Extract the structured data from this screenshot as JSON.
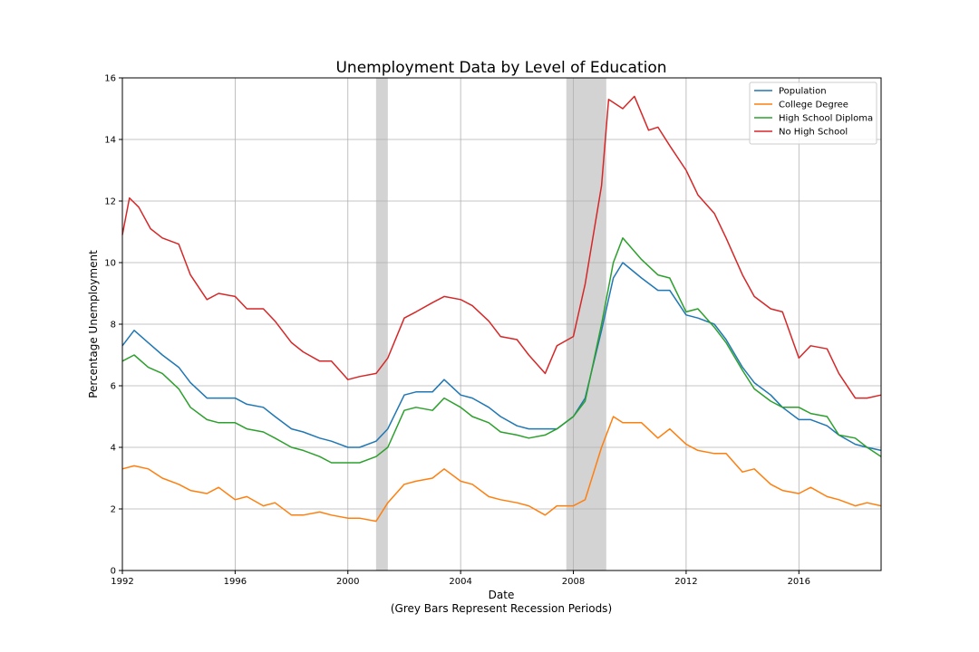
{
  "chart_data": {
    "type": "line",
    "title": "Unemployment Data by Level of Education",
    "xlabel": "Date",
    "xlabel_note": "(Grey Bars Represent Recession Periods)",
    "ylabel": "Percentage Unemployment",
    "xlim": [
      "1992-01",
      "2018-12"
    ],
    "ylim": [
      0,
      16
    ],
    "x_ticks": [
      "1992",
      "1996",
      "2000",
      "2004",
      "2008",
      "2012",
      "2016"
    ],
    "y_ticks": [
      "0",
      "2",
      "4",
      "6",
      "8",
      "10",
      "12",
      "14",
      "16"
    ],
    "grid": true,
    "legend_position": "top-right",
    "recessions": [
      {
        "start": "2001-01",
        "end": "2001-06"
      },
      {
        "start": "2007-10",
        "end": "2009-03"
      }
    ],
    "series": [
      {
        "name": "Population",
        "color": "#1f77b4",
        "points": [
          [
            "1992-01",
            7.3
          ],
          [
            "1992-06",
            7.8
          ],
          [
            "1992-12",
            7.4
          ],
          [
            "1993-06",
            7.0
          ],
          [
            "1994-01",
            6.6
          ],
          [
            "1994-06",
            6.1
          ],
          [
            "1995-01",
            5.6
          ],
          [
            "1995-06",
            5.6
          ],
          [
            "1996-01",
            5.6
          ],
          [
            "1996-06",
            5.4
          ],
          [
            "1997-01",
            5.3
          ],
          [
            "1997-06",
            5.0
          ],
          [
            "1998-01",
            4.6
          ],
          [
            "1998-06",
            4.5
          ],
          [
            "1999-01",
            4.3
          ],
          [
            "1999-06",
            4.2
          ],
          [
            "2000-01",
            4.0
          ],
          [
            "2000-06",
            4.0
          ],
          [
            "2001-01",
            4.2
          ],
          [
            "2001-06",
            4.6
          ],
          [
            "2002-01",
            5.7
          ],
          [
            "2002-06",
            5.8
          ],
          [
            "2003-01",
            5.8
          ],
          [
            "2003-06",
            6.2
          ],
          [
            "2004-01",
            5.7
          ],
          [
            "2004-06",
            5.6
          ],
          [
            "2005-01",
            5.3
          ],
          [
            "2005-06",
            5.0
          ],
          [
            "2006-01",
            4.7
          ],
          [
            "2006-06",
            4.6
          ],
          [
            "2007-01",
            4.6
          ],
          [
            "2007-06",
            4.6
          ],
          [
            "2008-01",
            5.0
          ],
          [
            "2008-06",
            5.6
          ],
          [
            "2009-01",
            7.8
          ],
          [
            "2009-06",
            9.5
          ],
          [
            "2009-10",
            10.0
          ],
          [
            "2010-06",
            9.5
          ],
          [
            "2011-01",
            9.1
          ],
          [
            "2011-06",
            9.1
          ],
          [
            "2012-01",
            8.3
          ],
          [
            "2012-06",
            8.2
          ],
          [
            "2013-01",
            8.0
          ],
          [
            "2013-06",
            7.5
          ],
          [
            "2014-01",
            6.6
          ],
          [
            "2014-06",
            6.1
          ],
          [
            "2015-01",
            5.7
          ],
          [
            "2015-06",
            5.3
          ],
          [
            "2016-01",
            4.9
          ],
          [
            "2016-06",
            4.9
          ],
          [
            "2017-01",
            4.7
          ],
          [
            "2017-06",
            4.4
          ],
          [
            "2018-01",
            4.1
          ],
          [
            "2018-06",
            4.0
          ],
          [
            "2018-12",
            3.9
          ]
        ]
      },
      {
        "name": "College Degree",
        "color": "#ff7f0e",
        "points": [
          [
            "1992-01",
            3.3
          ],
          [
            "1992-06",
            3.4
          ],
          [
            "1992-12",
            3.3
          ],
          [
            "1993-06",
            3.0
          ],
          [
            "1994-01",
            2.8
          ],
          [
            "1994-06",
            2.6
          ],
          [
            "1995-01",
            2.5
          ],
          [
            "1995-06",
            2.7
          ],
          [
            "1996-01",
            2.3
          ],
          [
            "1996-06",
            2.4
          ],
          [
            "1997-01",
            2.1
          ],
          [
            "1997-06",
            2.2
          ],
          [
            "1998-01",
            1.8
          ],
          [
            "1998-06",
            1.8
          ],
          [
            "1999-01",
            1.9
          ],
          [
            "1999-06",
            1.8
          ],
          [
            "2000-01",
            1.7
          ],
          [
            "2000-06",
            1.7
          ],
          [
            "2001-01",
            1.6
          ],
          [
            "2001-06",
            2.2
          ],
          [
            "2002-01",
            2.8
          ],
          [
            "2002-06",
            2.9
          ],
          [
            "2003-01",
            3.0
          ],
          [
            "2003-06",
            3.3
          ],
          [
            "2004-01",
            2.9
          ],
          [
            "2004-06",
            2.8
          ],
          [
            "2005-01",
            2.4
          ],
          [
            "2005-06",
            2.3
          ],
          [
            "2006-01",
            2.2
          ],
          [
            "2006-06",
            2.1
          ],
          [
            "2007-01",
            1.8
          ],
          [
            "2007-06",
            2.1
          ],
          [
            "2008-01",
            2.1
          ],
          [
            "2008-06",
            2.3
          ],
          [
            "2009-01",
            4.0
          ],
          [
            "2009-06",
            5.0
          ],
          [
            "2009-10",
            4.8
          ],
          [
            "2010-06",
            4.8
          ],
          [
            "2011-01",
            4.3
          ],
          [
            "2011-06",
            4.6
          ],
          [
            "2012-01",
            4.1
          ],
          [
            "2012-06",
            3.9
          ],
          [
            "2013-01",
            3.8
          ],
          [
            "2013-06",
            3.8
          ],
          [
            "2014-01",
            3.2
          ],
          [
            "2014-06",
            3.3
          ],
          [
            "2015-01",
            2.8
          ],
          [
            "2015-06",
            2.6
          ],
          [
            "2016-01",
            2.5
          ],
          [
            "2016-06",
            2.7
          ],
          [
            "2017-01",
            2.4
          ],
          [
            "2017-06",
            2.3
          ],
          [
            "2018-01",
            2.1
          ],
          [
            "2018-06",
            2.2
          ],
          [
            "2018-12",
            2.1
          ]
        ]
      },
      {
        "name": "High School Diploma",
        "color": "#2ca02c",
        "points": [
          [
            "1992-01",
            6.8
          ],
          [
            "1992-06",
            7.0
          ],
          [
            "1992-12",
            6.6
          ],
          [
            "1993-06",
            6.4
          ],
          [
            "1994-01",
            5.9
          ],
          [
            "1994-06",
            5.3
          ],
          [
            "1995-01",
            4.9
          ],
          [
            "1995-06",
            4.8
          ],
          [
            "1996-01",
            4.8
          ],
          [
            "1996-06",
            4.6
          ],
          [
            "1997-01",
            4.5
          ],
          [
            "1997-06",
            4.3
          ],
          [
            "1998-01",
            4.0
          ],
          [
            "1998-06",
            3.9
          ],
          [
            "1999-01",
            3.7
          ],
          [
            "1999-06",
            3.5
          ],
          [
            "2000-01",
            3.5
          ],
          [
            "2000-06",
            3.5
          ],
          [
            "2001-01",
            3.7
          ],
          [
            "2001-06",
            4.0
          ],
          [
            "2002-01",
            5.2
          ],
          [
            "2002-06",
            5.3
          ],
          [
            "2003-01",
            5.2
          ],
          [
            "2003-06",
            5.6
          ],
          [
            "2004-01",
            5.3
          ],
          [
            "2004-06",
            5.0
          ],
          [
            "2005-01",
            4.8
          ],
          [
            "2005-06",
            4.5
          ],
          [
            "2006-01",
            4.4
          ],
          [
            "2006-06",
            4.3
          ],
          [
            "2007-01",
            4.4
          ],
          [
            "2007-06",
            4.6
          ],
          [
            "2008-01",
            5.0
          ],
          [
            "2008-06",
            5.5
          ],
          [
            "2009-01",
            8.0
          ],
          [
            "2009-06",
            10.0
          ],
          [
            "2009-10",
            10.8
          ],
          [
            "2010-06",
            10.1
          ],
          [
            "2011-01",
            9.6
          ],
          [
            "2011-06",
            9.5
          ],
          [
            "2012-01",
            8.4
          ],
          [
            "2012-06",
            8.5
          ],
          [
            "2013-01",
            7.9
          ],
          [
            "2013-06",
            7.4
          ],
          [
            "2014-01",
            6.5
          ],
          [
            "2014-06",
            5.9
          ],
          [
            "2015-01",
            5.5
          ],
          [
            "2015-06",
            5.3
          ],
          [
            "2016-01",
            5.3
          ],
          [
            "2016-06",
            5.1
          ],
          [
            "2017-01",
            5.0
          ],
          [
            "2017-06",
            4.4
          ],
          [
            "2018-01",
            4.3
          ],
          [
            "2018-06",
            4.0
          ],
          [
            "2018-12",
            3.7
          ]
        ]
      },
      {
        "name": "No High School",
        "color": "#d62728",
        "points": [
          [
            "1992-01",
            10.9
          ],
          [
            "1992-04",
            12.1
          ],
          [
            "1992-08",
            11.8
          ],
          [
            "1993-01",
            11.1
          ],
          [
            "1993-06",
            10.8
          ],
          [
            "1994-01",
            10.6
          ],
          [
            "1994-06",
            9.6
          ],
          [
            "1995-01",
            8.8
          ],
          [
            "1995-06",
            9.0
          ],
          [
            "1996-01",
            8.9
          ],
          [
            "1996-06",
            8.5
          ],
          [
            "1997-01",
            8.5
          ],
          [
            "1997-06",
            8.1
          ],
          [
            "1998-01",
            7.4
          ],
          [
            "1998-06",
            7.1
          ],
          [
            "1999-01",
            6.8
          ],
          [
            "1999-06",
            6.8
          ],
          [
            "2000-01",
            6.2
          ],
          [
            "2000-06",
            6.3
          ],
          [
            "2001-01",
            6.4
          ],
          [
            "2001-06",
            6.9
          ],
          [
            "2002-01",
            8.2
          ],
          [
            "2002-06",
            8.4
          ],
          [
            "2003-01",
            8.7
          ],
          [
            "2003-06",
            8.9
          ],
          [
            "2004-01",
            8.8
          ],
          [
            "2004-06",
            8.6
          ],
          [
            "2005-01",
            8.1
          ],
          [
            "2005-06",
            7.6
          ],
          [
            "2006-01",
            7.5
          ],
          [
            "2006-06",
            7.0
          ],
          [
            "2007-01",
            6.4
          ],
          [
            "2007-06",
            7.3
          ],
          [
            "2008-01",
            7.6
          ],
          [
            "2008-06",
            9.3
          ],
          [
            "2009-01",
            12.5
          ],
          [
            "2009-04",
            15.3
          ],
          [
            "2009-10",
            15.0
          ],
          [
            "2010-03",
            15.4
          ],
          [
            "2010-09",
            14.3
          ],
          [
            "2011-01",
            14.4
          ],
          [
            "2011-06",
            13.8
          ],
          [
            "2012-01",
            13.0
          ],
          [
            "2012-06",
            12.2
          ],
          [
            "2013-01",
            11.6
          ],
          [
            "2013-06",
            10.8
          ],
          [
            "2014-01",
            9.6
          ],
          [
            "2014-06",
            8.9
          ],
          [
            "2015-01",
            8.5
          ],
          [
            "2015-06",
            8.4
          ],
          [
            "2016-01",
            6.9
          ],
          [
            "2016-06",
            7.3
          ],
          [
            "2017-01",
            7.2
          ],
          [
            "2017-06",
            6.4
          ],
          [
            "2018-01",
            5.6
          ],
          [
            "2018-06",
            5.6
          ],
          [
            "2018-12",
            5.7
          ]
        ]
      }
    ]
  }
}
